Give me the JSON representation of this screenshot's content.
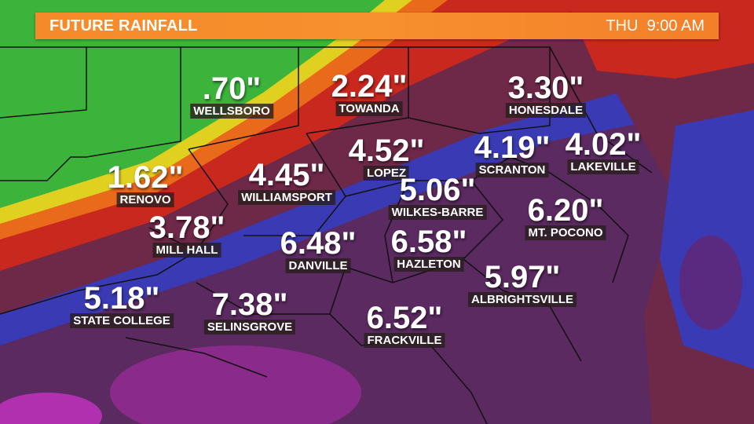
{
  "header": {
    "title": "FUTURE RAINFALL",
    "day": "THU",
    "time": "9:00 AM"
  },
  "colors": {
    "banner": "#f58a2a",
    "green": "#3cb43c",
    "yellow": "#e0d020",
    "orange": "#e86a1a",
    "red": "#c8281e",
    "dark_red": "#6e2848",
    "blue": "#3a3ab4",
    "purple": "#5a2a60",
    "magenta": "#a02aa0"
  },
  "rainfall_labels": [
    {
      "city": "WELLSBORO",
      "amount": ".70\""
    },
    {
      "city": "TOWANDA",
      "amount": "2.24\""
    },
    {
      "city": "HONESDALE",
      "amount": "3.30\""
    },
    {
      "city": "RENOVO",
      "amount": "1.62\""
    },
    {
      "city": "WILLIAMSPORT",
      "amount": "4.45\""
    },
    {
      "city": "LOPEZ",
      "amount": "4.52\""
    },
    {
      "city": "SCRANTON",
      "amount": "4.19\""
    },
    {
      "city": "LAKEVILLE",
      "amount": "4.02\""
    },
    {
      "city": "WILKES-BARRE",
      "amount": "5.06\""
    },
    {
      "city": "MT. POCONO",
      "amount": "6.20\""
    },
    {
      "city": "MILL HALL",
      "amount": "3.78\""
    },
    {
      "city": "DANVILLE",
      "amount": "6.48\""
    },
    {
      "city": "HAZLETON",
      "amount": "6.58\""
    },
    {
      "city": "ALBRIGHTSVILLE",
      "amount": "5.97\""
    },
    {
      "city": "STATE COLLEGE",
      "amount": "5.18\""
    },
    {
      "city": "SELINSGROVE",
      "amount": "7.38\""
    },
    {
      "city": "FRACKVILLE",
      "amount": "6.52\""
    }
  ]
}
